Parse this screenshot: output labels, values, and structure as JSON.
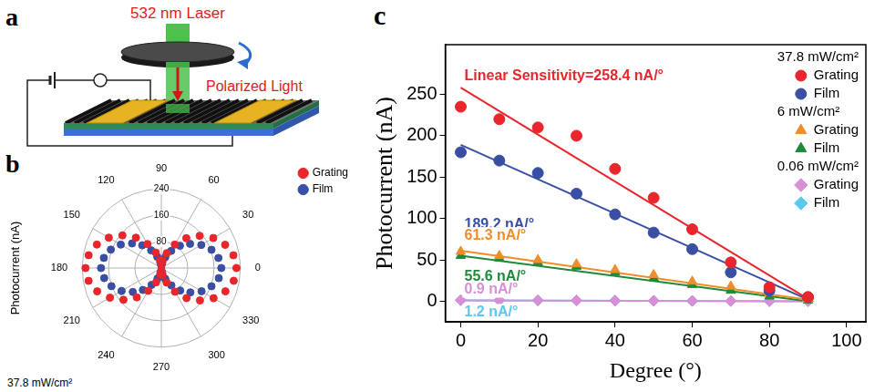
{
  "diagram": {
    "letter": "a",
    "labels": {
      "laser": "532 nm Laser",
      "polarized": "Polarized Light"
    }
  },
  "chart_data": [
    {
      "letter": "b",
      "type": "polar_scatter",
      "y_label": "Photocurrent (nA)",
      "note": "37.8 mW/cm²",
      "x": [
        0,
        10,
        20,
        30,
        40,
        50,
        60,
        70,
        80,
        90,
        100,
        110,
        120,
        130,
        140,
        150,
        160,
        170,
        180,
        190,
        200,
        210,
        220,
        230,
        240,
        250,
        260,
        270,
        280,
        290,
        300,
        310,
        320,
        330,
        340,
        350
      ],
      "xticks": [
        0,
        30,
        60,
        90,
        120,
        150,
        180,
        210,
        240,
        270,
        300,
        330
      ],
      "ylim": [
        0,
        240
      ],
      "yticks": [
        80,
        160,
        240
      ],
      "grid": true,
      "legend": "upper right",
      "series": [
        {
          "name": "Grating",
          "color": "#e8262b",
          "marker": "circle",
          "values": [
            228,
            222,
            206,
            182,
            152,
            118,
            82,
            48,
            22,
            10,
            24,
            50,
            84,
            120,
            154,
            184,
            208,
            224,
            230,
            224,
            207,
            180,
            150,
            116,
            80,
            46,
            20,
            9,
            22,
            47,
            83,
            119,
            153,
            183,
            207,
            223
          ]
        },
        {
          "name": "Film",
          "color": "#3a4fa3",
          "marker": "circle",
          "values": [
            182,
            176,
            162,
            140,
            114,
            88,
            60,
            35,
            15,
            7,
            16,
            36,
            62,
            90,
            116,
            142,
            163,
            177,
            183,
            176,
            161,
            139,
            113,
            87,
            59,
            34,
            14,
            6,
            15,
            35,
            61,
            89,
            115,
            141,
            162,
            177
          ]
        }
      ]
    },
    {
      "letter": "c",
      "type": "scatter",
      "x_label": "Degree (°)",
      "y_label": "Photocurrent (nA)",
      "x": [
        0,
        10,
        20,
        30,
        40,
        50,
        60,
        70,
        80,
        90
      ],
      "xlim": [
        -4,
        105
      ],
      "xticks": [
        0,
        20,
        40,
        60,
        80,
        100
      ],
      "ylim": [
        -25,
        310
      ],
      "yticks": [
        0,
        50,
        100,
        150,
        200,
        250
      ],
      "grid": false,
      "legend": "upper right",
      "groups": [
        {
          "title": "37.8 mW/cm²",
          "series": [
            {
              "name": "Grating",
              "color": "#e8262b",
              "marker": "circle",
              "values": [
                235,
                220,
                210,
                200,
                160,
                125,
                87,
                47,
                17,
                5
              ],
              "fit": {
                "x": [
                  0,
                  90
                ],
                "values": [
                  258,
                  3
                ]
              },
              "annotation": "Linear Sensitivity=258.4 nA/°"
            },
            {
              "name": "Film",
              "color": "#3a4fa3",
              "marker": "circle",
              "values": [
                180,
                170,
                155,
                130,
                105,
                83,
                63,
                35,
                13,
                5
              ],
              "fit": {
                "x": [
                  0,
                  90
                ],
                "values": [
                  189,
                  2
                ]
              },
              "annotation": "189.2 nA/°"
            }
          ]
        },
        {
          "title": "6 mW/cm²",
          "series": [
            {
              "name": "Grating",
              "color": "#f08c2a",
              "marker": "triangle",
              "values": [
                60,
                55,
                50,
                45,
                38,
                32,
                24,
                18,
                10,
                2
              ],
              "fit": {
                "x": [
                  0,
                  90
                ],
                "values": [
                  61,
                  2
                ]
              },
              "annotation": "61.3 nA/°"
            },
            {
              "name": "Film",
              "color": "#1f8a3a",
              "marker": "triangle",
              "values": [
                55,
                52,
                47,
                42,
                35,
                28,
                20,
                13,
                6,
                1
              ],
              "fit": {
                "x": [
                  0,
                  90
                ],
                "values": [
                  55,
                  0
                ]
              },
              "annotation": "55.6 nA/°"
            }
          ]
        },
        {
          "title": "0.06 mW/cm²",
          "series": [
            {
              "name": "Grating",
              "color": "#d98fd6",
              "marker": "diamond",
              "values": [
                1.5,
                1.3,
                1.2,
                1.0,
                0.9,
                0.7,
                0.5,
                0.4,
                0.2,
                0.1
              ],
              "fit": {
                "x": [
                  0,
                  90
                ],
                "values": [
                  1,
                  0
                ]
              },
              "annotation": "0.9 nA/°"
            },
            {
              "name": "Film",
              "color": "#5bc8ef",
              "marker": "diamond",
              "values": [
                1.2,
                1.1,
                1.0,
                0.9,
                0.7,
                0.6,
                0.4,
                0.3,
                0.2,
                0.1
              ],
              "fit": {
                "x": [
                  0,
                  90
                ],
                "values": [
                  1.2,
                  0
                ]
              },
              "annotation": "1.2 nA/°"
            }
          ]
        }
      ]
    }
  ]
}
